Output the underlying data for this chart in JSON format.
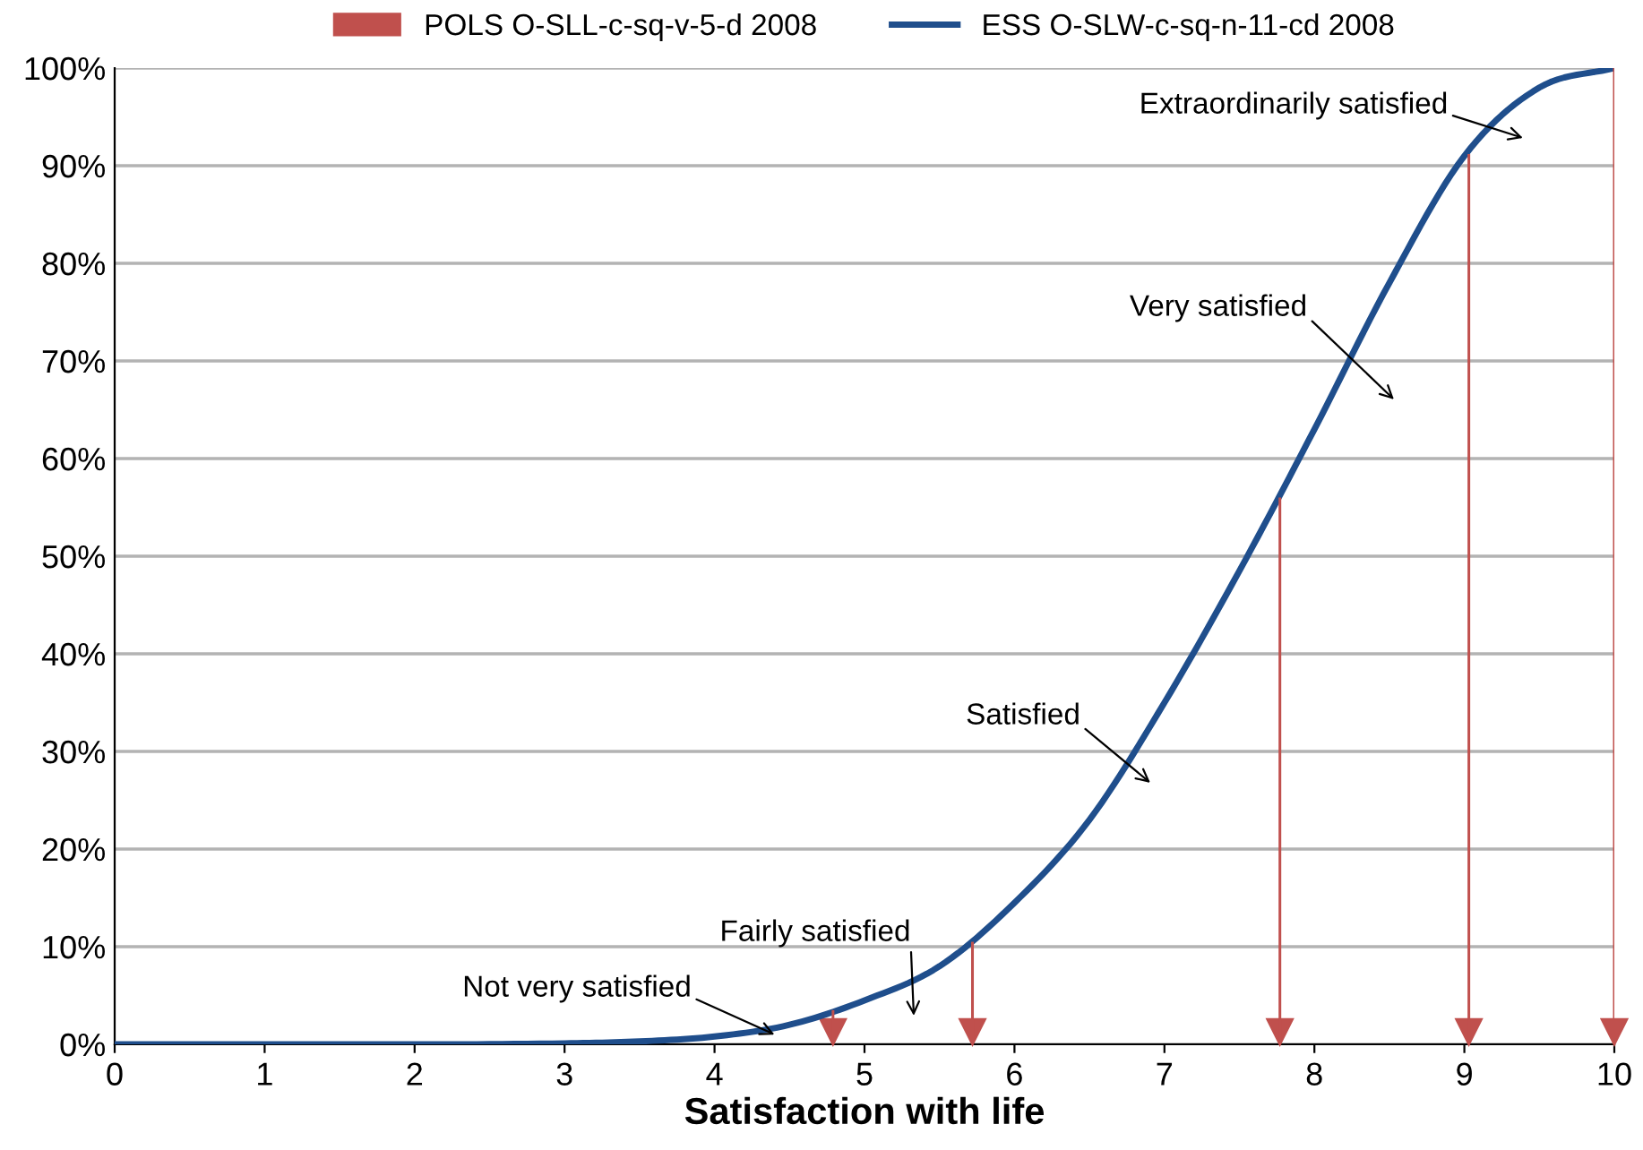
{
  "chart_data": {
    "type": "line",
    "xlabel": "Satisfaction with life",
    "xlim": [
      0,
      10
    ],
    "xticks": [
      0,
      1,
      2,
      3,
      4,
      5,
      6,
      7,
      8,
      9,
      10
    ],
    "ylim": [
      0,
      100
    ],
    "yticks": [
      {
        "value": 0,
        "label": "0%"
      },
      {
        "value": 10,
        "label": "10%"
      },
      {
        "value": 20,
        "label": "20%"
      },
      {
        "value": 30,
        "label": "30%"
      },
      {
        "value": 40,
        "label": "40%"
      },
      {
        "value": 50,
        "label": "50%"
      },
      {
        "value": 60,
        "label": "60%"
      },
      {
        "value": 70,
        "label": "70%"
      },
      {
        "value": 80,
        "label": "80%"
      },
      {
        "value": 90,
        "label": "90%"
      },
      {
        "value": 100,
        "label": "100%"
      }
    ],
    "grid": "y",
    "legend": "top",
    "series": [
      {
        "name": "POLS O-SLL-c-sq-v-5-d 2008",
        "type": "bar",
        "color": "#c0504d",
        "marker": "triangle",
        "x": [
          4.79,
          5.72,
          7.77,
          9.03,
          10
        ],
        "values": [
          3.5,
          10.5,
          56,
          91.2,
          100
        ]
      },
      {
        "name": "ESS O-SLW-c-sq-n-11-cd 2008",
        "color": "#1f4e8c",
        "marker": "none",
        "x": [
          0,
          1,
          2,
          3,
          3.5,
          4,
          4.5,
          5,
          5.5,
          6,
          6.5,
          7,
          7.5,
          8,
          8.5,
          9,
          9.5,
          10
        ],
        "values": [
          0,
          0,
          0,
          0.1,
          0.3,
          0.8,
          2,
          4.5,
          8,
          14.5,
          23,
          35,
          48.5,
          63,
          78,
          91,
          98,
          100
        ]
      }
    ],
    "annotations": [
      {
        "text": "Not very satisfied",
        "x": 4.4,
        "y": 1
      },
      "Fairly satisfied",
      "Satisfied",
      "Very satisfied",
      "Extraordinarily satisfied"
    ]
  }
}
